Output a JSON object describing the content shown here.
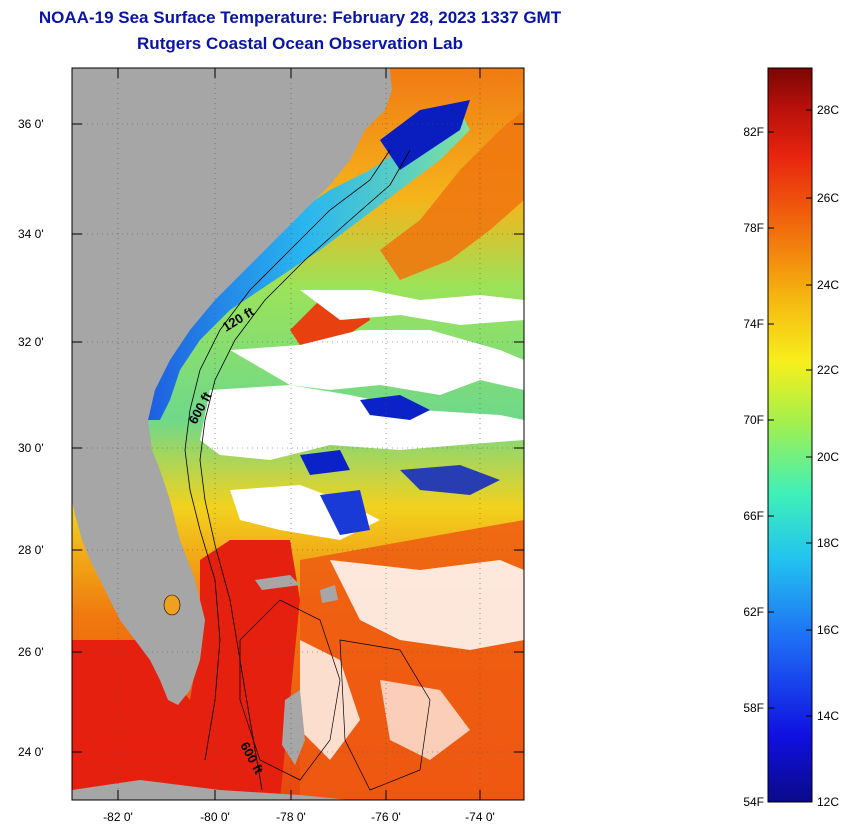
{
  "header": {
    "title_line_1": "NOAA-19 Sea Surface Temperature:  February 28, 2023 1337 GMT",
    "title_line_2": "Rutgers Coastal Ocean Observation Lab"
  },
  "map": {
    "lat_labels": [
      "36 0'",
      "34 0'",
      "32 0'",
      "30 0'",
      "28 0'",
      "26 0'",
      "24 0'"
    ],
    "lon_labels": [
      "-82 0'",
      "-80 0'",
      "-78 0'",
      "-76 0'",
      "-74 0'"
    ],
    "contour_labels": [
      "120 ft",
      "600 ft",
      "600 ft"
    ],
    "colors": {
      "land": "#a6a6a6",
      "cloud": "#ffffff",
      "cold": "#0a22c8",
      "cool": "#29b6f0",
      "mild": "#9be35a",
      "warm": "#f7e21a",
      "hot": "#f0780f",
      "hottest": "#e5200f"
    }
  },
  "colorbar": {
    "fahrenheit_labels": [
      "82F",
      "78F",
      "74F",
      "70F",
      "66F",
      "62F",
      "58F",
      "54F"
    ],
    "celsius_labels": [
      "28C",
      "26C",
      "24C",
      "22C",
      "20C",
      "18C",
      "16C",
      "14C",
      "12C"
    ],
    "gradient": [
      "#0a0a8a",
      "#1010e0",
      "#1e6cf5",
      "#22c2f0",
      "#3ff0b8",
      "#a6f04a",
      "#f7ef1c",
      "#f5b410",
      "#f26e0c",
      "#e8240e",
      "#b40f0a",
      "#7a0604"
    ]
  }
}
